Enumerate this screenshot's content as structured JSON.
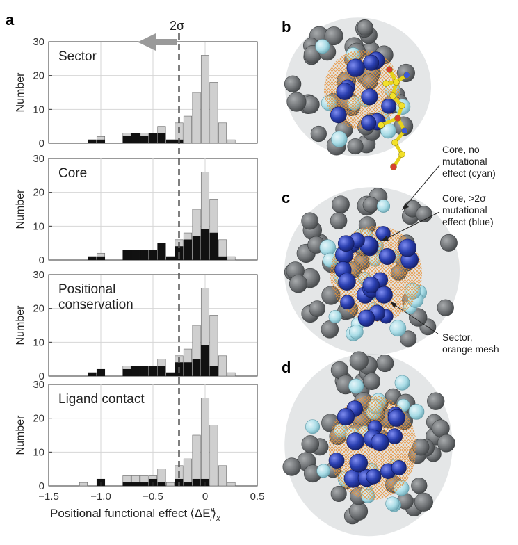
{
  "figure": {
    "panel_labels": [
      "a",
      "b",
      "c",
      "d"
    ],
    "sigma_label": "2σ",
    "annotations": [
      {
        "lines": [
          "Core, no",
          "mutational",
          "effect (cyan)"
        ]
      },
      {
        "lines": [
          "Core, >2σ",
          "mutational",
          "effect (blue)"
        ]
      },
      {
        "lines": [
          "Sector,",
          "orange mesh"
        ]
      }
    ],
    "colors": {
      "gray_bar": "#cfcfcf",
      "black_bar": "#111111",
      "cyan_atom": "#a9dce6",
      "blue_atom": "#2a3fb0",
      "gray_atom": "#6f7275",
      "orange_mesh": "#e8933a",
      "arrow": "#9a9a9a",
      "grid": "#d6d6d6"
    }
  },
  "chart_data": [
    {
      "type": "bar",
      "stacked": true,
      "title": "Sector",
      "xlabel": "Positional functional effect ⟨ΔE",
      "xlabel_sup": "x",
      "xlabel_sub": "i",
      "xlabel_end": "⟩",
      "xlabel_sub2": "x",
      "ylabel": "Number",
      "xlim": [
        -1.5,
        0.5
      ],
      "ylim": [
        0,
        30
      ],
      "yticks": [
        0,
        10,
        20,
        30
      ],
      "bin_width": 0.083,
      "threshold": -0.25,
      "threshold_label": "2σ",
      "bin_centers": [
        -1.083,
        -1.0,
        -0.75,
        -0.667,
        -0.583,
        -0.5,
        -0.417,
        -0.333,
        -0.25,
        -0.167,
        -0.083,
        0.0,
        0.083,
        0.167,
        0.25
      ],
      "series": [
        {
          "name": "",
          "color": "#111111",
          "values": [
            1,
            1,
            2,
            3,
            2,
            3,
            3,
            1,
            1,
            0,
            0,
            0,
            0,
            0,
            0
          ]
        },
        {
          "name": "",
          "color": "#cfcfcf",
          "values": [
            1,
            2,
            3,
            3,
            3,
            3,
            5,
            1,
            6,
            8,
            15,
            26,
            18,
            6,
            1
          ]
        }
      ]
    },
    {
      "type": "bar",
      "stacked": true,
      "title": "Core",
      "xlabel": "",
      "ylabel": "Number",
      "xlim": [
        -1.5,
        0.5
      ],
      "ylim": [
        0,
        30
      ],
      "yticks": [
        0,
        10,
        20,
        30
      ],
      "bin_width": 0.083,
      "threshold": -0.25,
      "bin_centers": [
        -1.083,
        -1.0,
        -0.75,
        -0.667,
        -0.583,
        -0.5,
        -0.417,
        -0.333,
        -0.25,
        -0.167,
        -0.083,
        0.0,
        0.083,
        0.167,
        0.25
      ],
      "series": [
        {
          "name": "",
          "color": "#111111",
          "values": [
            1,
            1,
            3,
            3,
            3,
            3,
            5,
            1,
            4,
            6,
            7,
            9,
            8,
            1,
            0
          ]
        },
        {
          "name": "",
          "color": "#cfcfcf",
          "values": [
            1,
            2,
            3,
            3,
            3,
            3,
            5,
            1,
            6,
            8,
            15,
            26,
            18,
            6,
            1
          ]
        }
      ]
    },
    {
      "type": "bar",
      "stacked": true,
      "title": "Positional\nconservation",
      "xlabel": "",
      "ylabel": "Number",
      "xlim": [
        -1.5,
        0.5
      ],
      "ylim": [
        0,
        30
      ],
      "yticks": [
        0,
        10,
        20,
        30
      ],
      "bin_width": 0.083,
      "threshold": -0.25,
      "bin_centers": [
        -1.083,
        -1.0,
        -0.75,
        -0.667,
        -0.583,
        -0.5,
        -0.417,
        -0.333,
        -0.25,
        -0.167,
        -0.083,
        0.0,
        0.083,
        0.167,
        0.25
      ],
      "series": [
        {
          "name": "",
          "color": "#111111",
          "values": [
            1,
            2,
            2,
            3,
            3,
            3,
            3,
            1,
            4,
            4,
            5,
            9,
            3,
            0,
            0
          ]
        },
        {
          "name": "",
          "color": "#cfcfcf",
          "values": [
            1,
            2,
            3,
            3,
            3,
            3,
            5,
            1,
            6,
            8,
            15,
            26,
            18,
            6,
            1
          ]
        }
      ]
    },
    {
      "type": "bar",
      "stacked": true,
      "title": "Ligand contact",
      "xlabel": "Positional functional effect",
      "ylabel": "Number",
      "xlim": [
        -1.5,
        0.5
      ],
      "ylim": [
        0,
        30
      ],
      "yticks": [
        0,
        10,
        20,
        30
      ],
      "xticks": [
        -1.5,
        -1.0,
        -0.5,
        0,
        0.5
      ],
      "xticklabels": [
        "−1.5",
        "−1.0",
        "−0.5",
        "0",
        "0.5"
      ],
      "bin_width": 0.083,
      "threshold": -0.25,
      "bin_centers": [
        -1.167,
        -1.0,
        -0.75,
        -0.667,
        -0.583,
        -0.5,
        -0.417,
        -0.333,
        -0.25,
        -0.167,
        -0.083,
        0.0,
        0.083,
        0.167,
        0.25
      ],
      "series": [
        {
          "name": "",
          "color": "#111111",
          "values": [
            0,
            2,
            1,
            1,
            1,
            2,
            1,
            0,
            2,
            1,
            2,
            2,
            0,
            0,
            0
          ]
        },
        {
          "name": "",
          "color": "#cfcfcf",
          "values": [
            1,
            2,
            3,
            3,
            3,
            3,
            5,
            1,
            6,
            8,
            15,
            26,
            18,
            6,
            1
          ]
        }
      ]
    }
  ]
}
